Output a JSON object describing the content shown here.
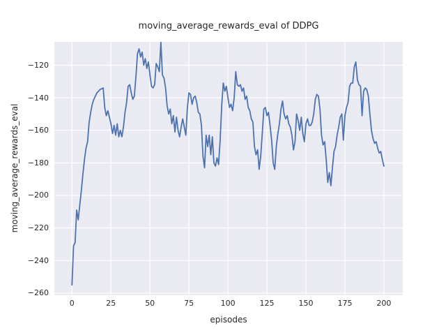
{
  "figure": {
    "background": "#ffffff",
    "axes_background": "#eaeaf2",
    "grid_color": "#ffffff",
    "text_color": "#262626"
  },
  "chart_data": {
    "type": "line",
    "title": "moving_average_rewards_eval of DDPG",
    "xlabel": "episodes",
    "ylabel": "moving_average_rewards_eval",
    "xlim": [
      -11.3,
      212.1
    ],
    "ylim": [
      -261.3,
      -105.7
    ],
    "xticks": [
      0,
      25,
      50,
      75,
      100,
      125,
      150,
      175,
      200
    ],
    "xtick_labels": [
      "0",
      "25",
      "50",
      "75",
      "100",
      "125",
      "150",
      "175",
      "200"
    ],
    "yticks": [
      -260,
      -240,
      -220,
      -200,
      -180,
      -160,
      -140,
      -120
    ],
    "ytick_labels": [
      "−260",
      "−240",
      "−220",
      "−200",
      "−180",
      "−160",
      "−140",
      "−120"
    ],
    "grid": true,
    "legend": null,
    "series": [
      {
        "name": "moving_average_rewards_eval",
        "color": "#4c72b0",
        "line_width": 1.8,
        "x_start": 0,
        "x_step": 1,
        "values": [
          -255,
          -231,
          -229,
          -209,
          -215,
          -206,
          -197,
          -187,
          -178,
          -171,
          -167,
          -155,
          -149,
          -144,
          -141,
          -139,
          -137,
          -136,
          -135,
          -134.5,
          -134,
          -146,
          -151,
          -148,
          -152,
          -156,
          -162,
          -157,
          -163,
          -156,
          -164,
          -160,
          -164,
          -158,
          -149,
          -143,
          -133,
          -132,
          -137,
          -141,
          -139,
          -127,
          -113,
          -110,
          -115,
          -112,
          -120,
          -116,
          -122,
          -118,
          -126,
          -133,
          -134,
          -132,
          -119,
          -121,
          -124,
          -106,
          -126,
          -128,
          -134,
          -145,
          -150,
          -147,
          -156,
          -151,
          -161,
          -152,
          -160,
          -164,
          -158,
          -153,
          -158,
          -163,
          -146,
          -137,
          -138,
          -144,
          -140,
          -139,
          -143,
          -149,
          -150,
          -157,
          -176,
          -183,
          -163,
          -170,
          -163,
          -175,
          -164,
          -180,
          -182,
          -177,
          -181,
          -166,
          -145,
          -131,
          -136,
          -133,
          -140,
          -146,
          -144,
          -148,
          -140,
          -124,
          -132,
          -133,
          -132,
          -136,
          -134,
          -141,
          -139,
          -146,
          -148,
          -153,
          -155,
          -170,
          -175,
          -172,
          -184,
          -176,
          -162,
          -147,
          -146,
          -151,
          -149,
          -157,
          -166,
          -180,
          -184,
          -170,
          -162,
          -156,
          -147,
          -142,
          -150,
          -153,
          -151,
          -156,
          -158,
          -163,
          -172,
          -167,
          -150,
          -154,
          -160,
          -152,
          -162,
          -167,
          -156,
          -153,
          -157,
          -157,
          -155,
          -150,
          -141,
          -138,
          -139,
          -147,
          -163,
          -169,
          -167,
          -178,
          -192,
          -186,
          -194,
          -183,
          -173,
          -170,
          -163,
          -158,
          -152,
          -150,
          -166,
          -151,
          -146,
          -143,
          -133,
          -131,
          -131,
          -121,
          -118,
          -129,
          -132,
          -133,
          -151,
          -136,
          -134,
          -135,
          -139,
          -150,
          -160,
          -165,
          -168,
          -167,
          -171,
          -174,
          -173,
          -178,
          -182
        ]
      }
    ]
  }
}
